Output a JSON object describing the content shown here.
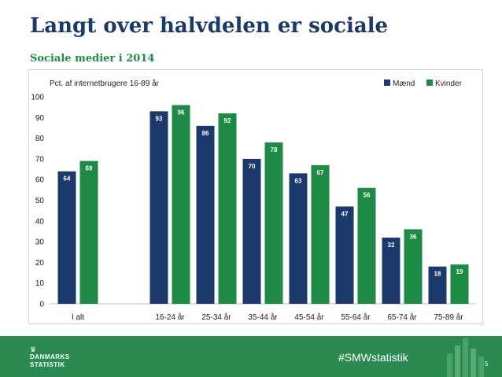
{
  "page": {
    "title": "Langt over halvdelen er sociale",
    "subtitle": "Sociale medier i 2014",
    "hashtag": "#SMWstatistik",
    "page_number": "5",
    "logo_line1": "DANMARKS",
    "logo_line2": "STATISTIK"
  },
  "colors": {
    "maend": "#1b3a6b",
    "kvinder": "#1d8a45",
    "title": "#1b3a6b",
    "subtitle": "#1d8a45",
    "footer": "#2a8a52"
  },
  "chart_data": {
    "type": "bar",
    "annotation": "Pct. af internetbrugere 16-89 år",
    "categories": [
      "I alt",
      "16-24 år",
      "25-34 år",
      "35-44 år",
      "45-54 år",
      "55-64 år",
      "65-74 år",
      "75-89 år"
    ],
    "series": [
      {
        "name": "Mænd",
        "values": [
          64,
          93,
          86,
          70,
          63,
          47,
          32,
          18
        ],
        "labels": [
          "64",
          "93",
          "86",
          "70",
          "63",
          "47",
          "32",
          "18"
        ]
      },
      {
        "name": "Kvinder",
        "values": [
          69,
          96,
          92,
          78,
          67,
          56,
          36,
          19
        ],
        "labels": [
          "69",
          "96",
          "92",
          "78",
          "67",
          "56",
          "36",
          "19"
        ]
      }
    ],
    "ylim": [
      0,
      100
    ],
    "yticks": [
      "0",
      "10",
      "20",
      "30",
      "40",
      "50",
      "60",
      "70",
      "80",
      "90",
      "100"
    ],
    "grid": false,
    "legend_position": "top-right"
  }
}
